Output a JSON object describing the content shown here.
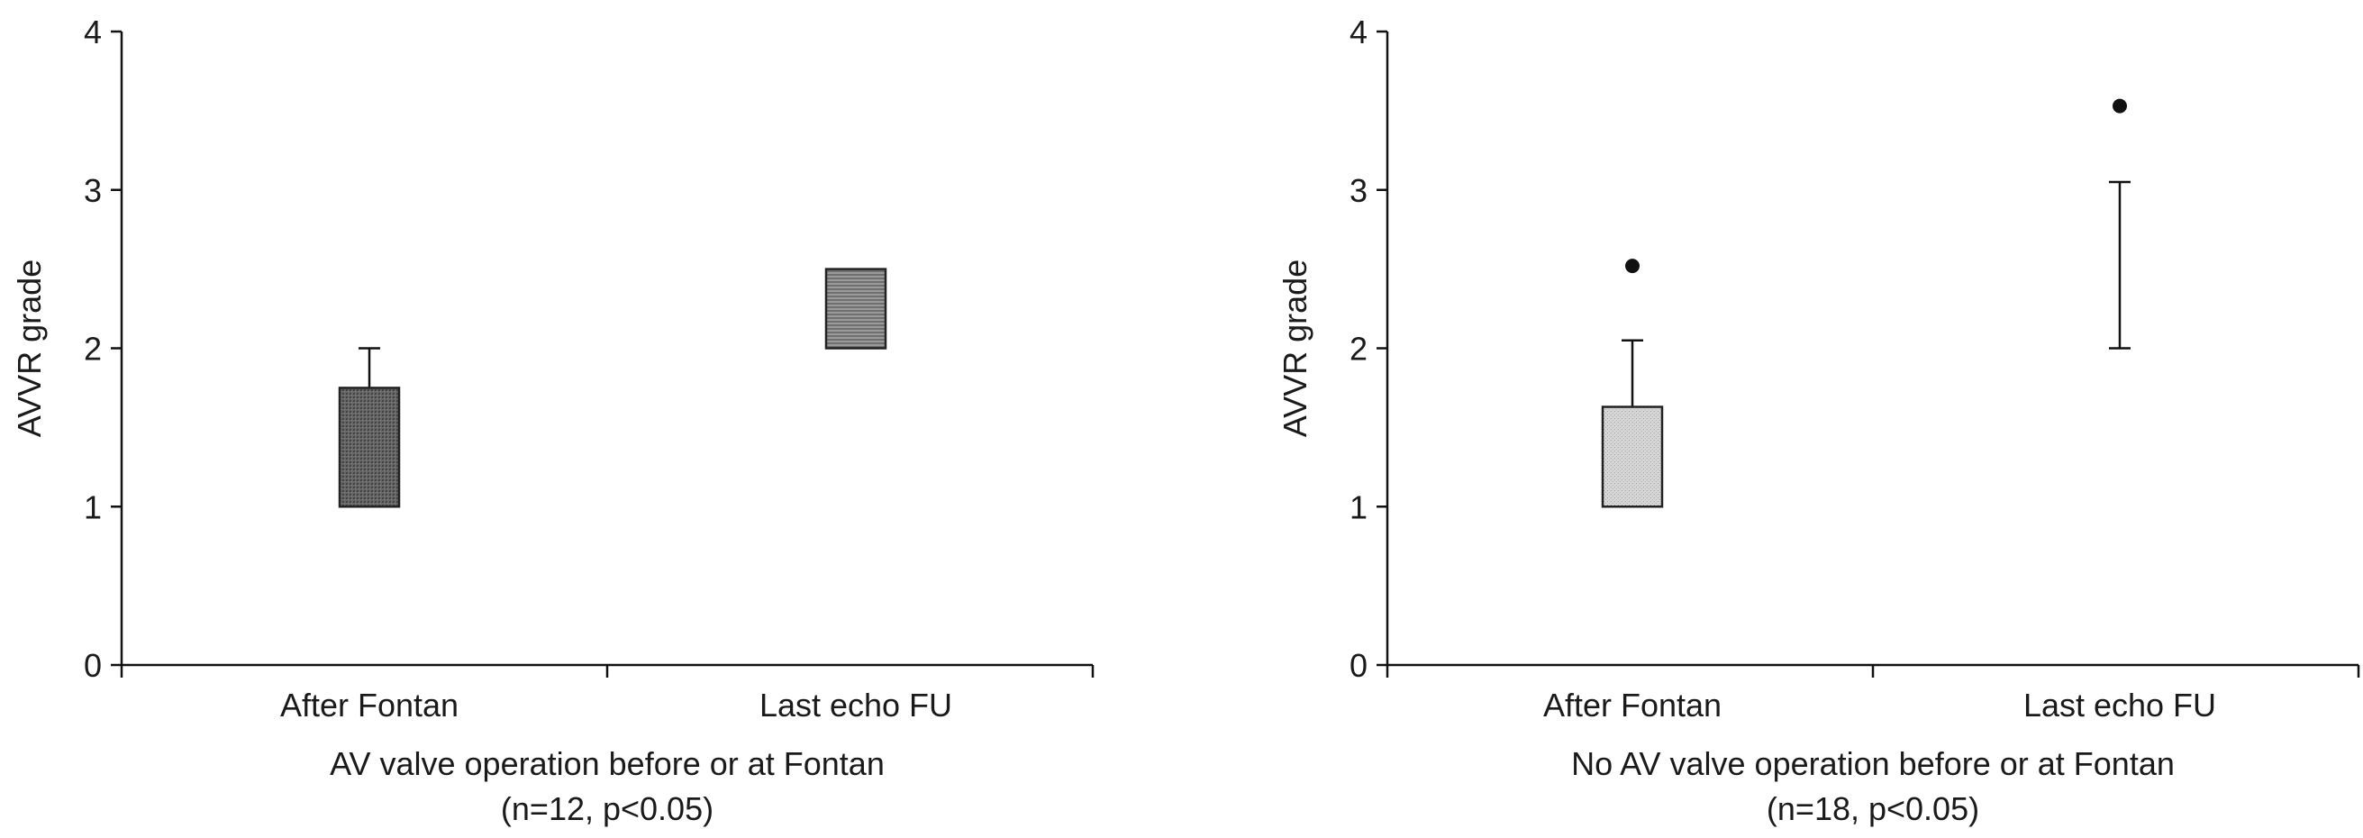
{
  "chart_data": [
    {
      "type": "box",
      "title": "AV valve operation before or at Fontan",
      "subtitle": "(n=12, p<0.05)",
      "xlabel": "",
      "ylabel": "AVVR grade",
      "ylim": [
        0,
        4
      ],
      "yticks": [
        "0",
        "1",
        "2",
        "3",
        "4"
      ],
      "grid": false,
      "categories": [
        "After Fontan",
        "Last echo FU"
      ],
      "boxes": [
        {
          "category": "After Fontan",
          "q1": 1.0,
          "q3": 1.75,
          "median": 1.0,
          "whisker_low": 1.0,
          "whisker_high": 2.0,
          "outliers": [],
          "fill": "#555555"
        },
        {
          "category": "Last echo FU",
          "q1": 2.0,
          "q3": 2.5,
          "median": 2.0,
          "whisker_low": 2.0,
          "whisker_high": 2.5,
          "outliers": [],
          "fill": "#888888"
        }
      ]
    },
    {
      "type": "box",
      "title": "No AV valve operation before or at Fontan",
      "subtitle": "(n=18, p<0.05)",
      "xlabel": "",
      "ylabel": "AVVR grade",
      "ylim": [
        0,
        4
      ],
      "yticks": [
        "0",
        "1",
        "2",
        "3",
        "4"
      ],
      "grid": false,
      "categories": [
        "After Fontan",
        "Last echo FU"
      ],
      "boxes": [
        {
          "category": "After Fontan",
          "q1": 1.0,
          "q3": 1.63,
          "median": 1.0,
          "whisker_low": 1.0,
          "whisker_high": 2.05,
          "outliers": [
            2.52
          ],
          "fill": "#cfcfcf"
        },
        {
          "category": "Last echo FU",
          "q1": 2.0,
          "q3": 3.05,
          "median": 2.0,
          "whisker_low": 2.0,
          "whisker_high": 3.05,
          "outliers": [
            3.53
          ],
          "fill": "none"
        }
      ]
    }
  ]
}
